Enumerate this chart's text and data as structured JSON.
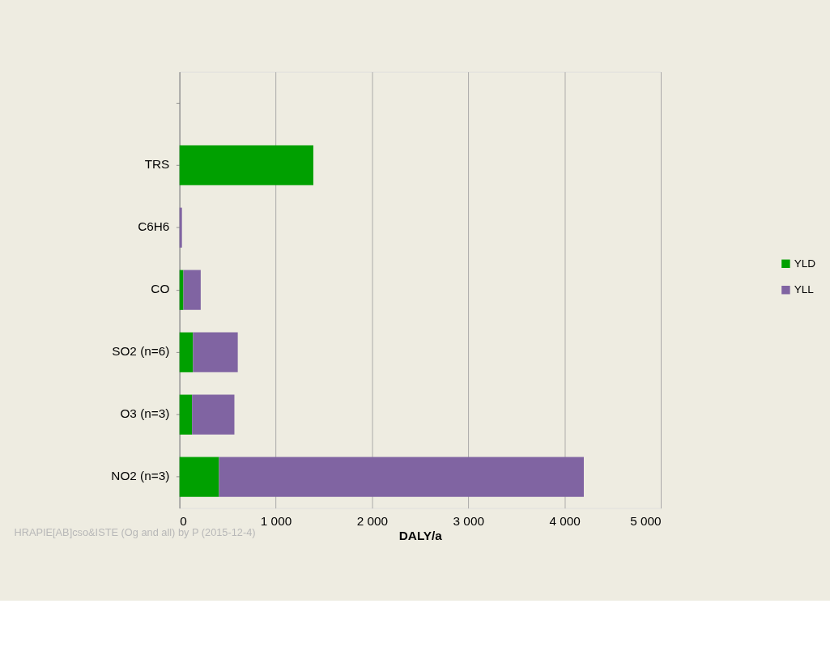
{
  "chart_data": {
    "type": "bar",
    "orientation": "horizontal",
    "stacked": true,
    "categories": [
      null,
      "TRS",
      "C6H6",
      "CO",
      "SO2 (n=6)",
      "O3 (n=3)",
      "NO2 (n=3)"
    ],
    "series": [
      {
        "name": "YLD",
        "color": "#00a000",
        "values": [
          null,
          1390,
          0,
          40,
          140,
          130,
          410
        ]
      },
      {
        "name": "YLL",
        "color": "#8064a2",
        "values": [
          null,
          0,
          25,
          180,
          465,
          440,
          3790
        ]
      }
    ],
    "xlim": [
      0,
      5000
    ],
    "xticks": [
      0,
      {
        "value": 1000,
        "label": "1 000"
      },
      {
        "value": 2000,
        "label": "2 000"
      },
      {
        "value": 3000,
        "label": "3 000"
      },
      {
        "value": 4000,
        "label": "4 000"
      },
      {
        "value": 5000,
        "label": "5 000"
      }
    ],
    "xlabel": "DALY/a",
    "grid": "x",
    "legend": "right",
    "annotations": [
      "HRAPIE[AB]cso&ISTE (Og and all) by P (2015-12-4)"
    ]
  }
}
